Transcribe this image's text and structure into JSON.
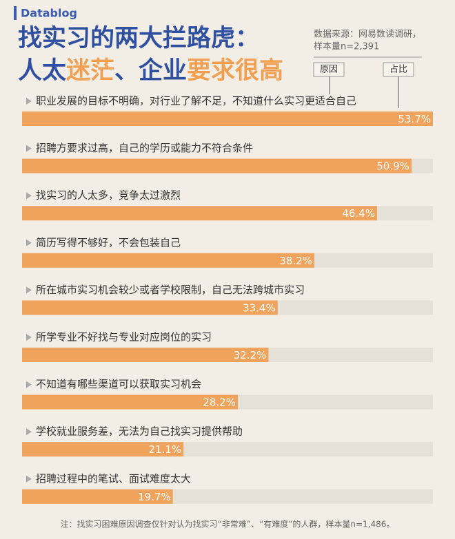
{
  "brand": "Datablog",
  "chart_data": {
    "type": "bar",
    "title_lines": [
      [
        "找实习的两大拦路虎："
      ],
      [
        "人太",
        "迷茫",
        "、企业",
        "要求很高"
      ]
    ],
    "source": [
      "数据来源：网易数读调研，",
      "样本量n=2,391"
    ],
    "legend": [
      "原因",
      "占比"
    ],
    "categories": [
      "职业发展的目标不明确，对行业了解不足，不知道什么实习更适合自己",
      "招聘方要求过高，自己的学历或能力不符合条件",
      "找实习的人太多，竞争太过激烈",
      "简历写得不够好，不会包装自己",
      "所在城市实习机会较少或者学校限制，自己无法跨城市实习",
      "所学专业不好找与专业对应岗位的实习",
      "不知道有哪些渠道可以获取实习机会",
      "学校就业服务差，无法为自己找实习提供帮助",
      "招聘过程中的笔试、面试难度太大"
    ],
    "values": [
      53.7,
      50.9,
      46.4,
      38.2,
      33.4,
      32.2,
      28.2,
      21.1,
      19.7
    ],
    "value_labels": [
      "53.7%",
      "50.9%",
      "46.4%",
      "38.2%",
      "33.4%",
      "32.2%",
      "28.2%",
      "21.1%",
      "19.7%"
    ],
    "color": "#f0a35c",
    "note": "注：找实习困难原因调查仅针对认为找实习“非常难”、“有难度”的人群，样本量n=1,486。"
  }
}
